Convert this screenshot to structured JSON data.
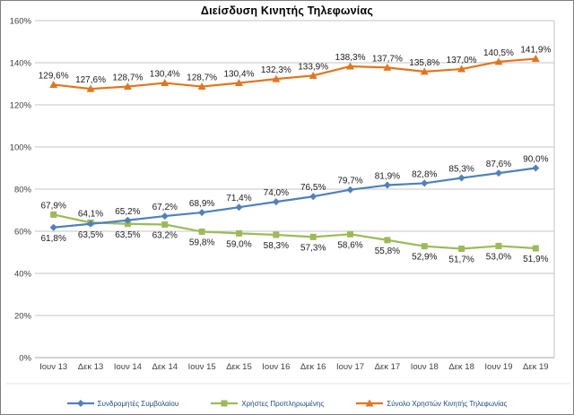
{
  "chart_data": {
    "type": "line",
    "title": "Διείσδυση Κινητής Τηλεφωνίας",
    "categories": [
      "Ιουν 13",
      "Δεκ 13",
      "Ιουν 14",
      "Δεκ 14",
      "Ιουν 15",
      "Δεκ 15",
      "Ιουν 16",
      "Δεκ 16",
      "Ιουν 17",
      "Δεκ 17",
      "Ιουν 18",
      "Δεκ 18",
      "Ιουν 19",
      "Δεκ 19"
    ],
    "y_tick_labels": [
      "0%",
      "20%",
      "40%",
      "60%",
      "80%",
      "100%",
      "120%",
      "140%",
      "160%"
    ],
    "ylim": [
      0,
      160
    ],
    "grid": "horizontal",
    "legend_position": "bottom",
    "colors": {
      "gridline": "#C6C6C6",
      "axis_line": "#A6A6A6",
      "tick_text": "#404040",
      "data_label_text": "#1a1a1a",
      "legend_text": "#1F497D",
      "divider": "#E3E3E3"
    },
    "series": [
      {
        "name": "Συνδρομητές Συμβολαίου",
        "color": "#4F81BD",
        "marker": "diamond",
        "values": [
          61.8,
          63.5,
          65.2,
          67.2,
          68.9,
          71.4,
          74.0,
          76.5,
          79.7,
          81.9,
          82.8,
          85.3,
          87.6,
          90.0
        ],
        "point_labels": [
          "61,8%",
          "63,5%",
          "65,2%",
          "67,2%",
          "68,9%",
          "71,4%",
          "74,0%",
          "76,5%",
          "79,7%",
          "81,9%",
          "82,8%",
          "85,3%",
          "87,6%",
          "90,0%"
        ],
        "label_positions": [
          "below",
          "below",
          "above",
          "above",
          "above",
          "above",
          "above",
          "above",
          "above",
          "above",
          "above",
          "above",
          "above",
          "above"
        ]
      },
      {
        "name": "Χρήστες Προπληρωμένης",
        "color": "#9BBB59",
        "marker": "square",
        "values": [
          67.9,
          64.1,
          63.5,
          63.2,
          59.8,
          59.0,
          58.3,
          57.3,
          58.6,
          55.8,
          52.9,
          51.7,
          53.0,
          51.9
        ],
        "point_labels": [
          "67,9%",
          "64,1%",
          "63,5%",
          "63,2%",
          "59,8%",
          "59,0%",
          "58,3%",
          "57,3%",
          "58,6%",
          "55,8%",
          "52,9%",
          "51,7%",
          "53,0%",
          "51,9%"
        ],
        "label_positions": [
          "above",
          "above",
          "below",
          "below",
          "below",
          "below",
          "below",
          "below",
          "below",
          "below",
          "below",
          "below",
          "below",
          "below"
        ]
      },
      {
        "name": "Σύνολο Χρηστών Κινητής Τηλεφωνίας",
        "color": "#E2751D",
        "marker": "triangle",
        "values": [
          129.6,
          127.6,
          128.7,
          130.4,
          128.7,
          130.4,
          132.3,
          133.9,
          138.3,
          137.7,
          135.8,
          137.0,
          140.5,
          141.9
        ],
        "point_labels": [
          "129,6%",
          "127,6%",
          "128,7%",
          "130,4%",
          "128,7%",
          "130,4%",
          "132,3%",
          "133,9%",
          "138,3%",
          "137,7%",
          "135,8%",
          "137,0%",
          "140,5%",
          "141,9%"
        ],
        "label_positions": [
          "above",
          "above",
          "above",
          "above",
          "above",
          "above",
          "above",
          "above",
          "above",
          "above",
          "above",
          "above",
          "above",
          "above"
        ]
      }
    ]
  }
}
